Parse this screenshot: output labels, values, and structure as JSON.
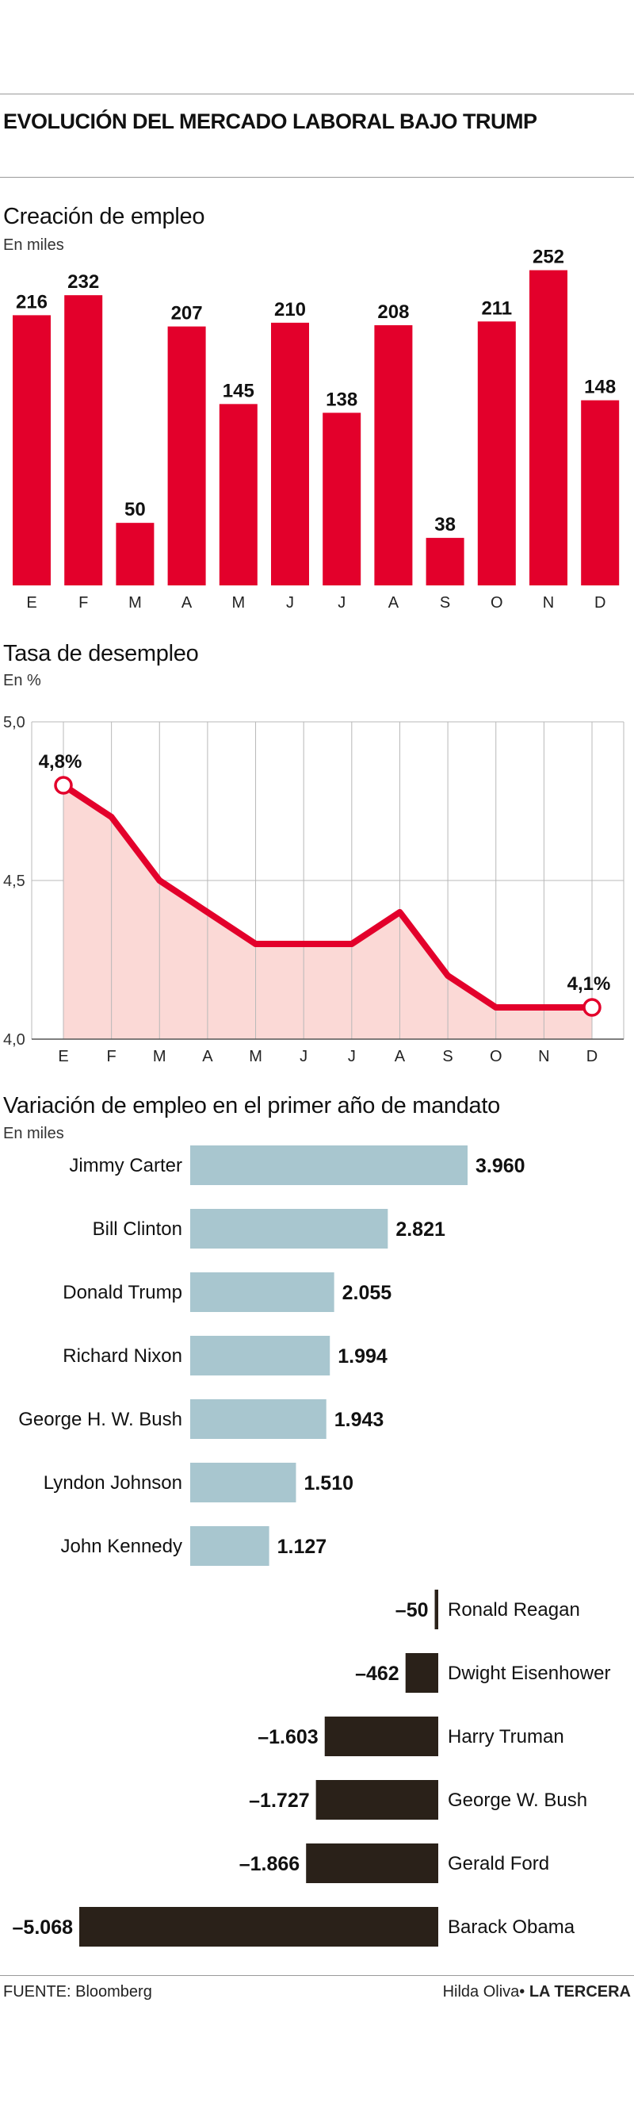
{
  "header": {
    "title": "EVOLUCIÓN DEL MERCADO LABORAL BAJO TRUMP"
  },
  "sections": {
    "jobs": {
      "title": "Creación de empleo",
      "subtitle": "En miles"
    },
    "unemployment": {
      "title": "Tasa de desempleo",
      "subtitle": "En %"
    },
    "presidents": {
      "title": "Variación de empleo en el primer año de mandato",
      "subtitle": "En miles"
    }
  },
  "colors": {
    "red": "#e3002b",
    "area": "#fbd9d6",
    "blue": "#a8c6cf",
    "dark": "#2a2119",
    "grid": "#b8b8b8"
  },
  "chart_data": [
    {
      "type": "bar",
      "title": "Creación de empleo",
      "ylabel": "En miles",
      "categories": [
        "E",
        "F",
        "M",
        "A",
        "M",
        "J",
        "J",
        "A",
        "S",
        "O",
        "N",
        "D"
      ],
      "values": [
        216,
        232,
        50,
        207,
        145,
        210,
        138,
        208,
        38,
        211,
        252,
        148
      ],
      "ylim": [
        0,
        260
      ]
    },
    {
      "type": "line",
      "title": "Tasa de desempleo",
      "ylabel": "En %",
      "categories": [
        "E",
        "F",
        "M",
        "A",
        "M",
        "J",
        "J",
        "A",
        "S",
        "O",
        "N",
        "D"
      ],
      "values": [
        4.8,
        4.7,
        4.5,
        4.4,
        4.3,
        4.3,
        4.3,
        4.4,
        4.2,
        4.1,
        4.1,
        4.1
      ],
      "yticks": [
        "5,0",
        "4,5",
        "4,0"
      ],
      "ylim": [
        4.0,
        5.0
      ],
      "start_label": "4,8%",
      "end_label": "4,1%",
      "grid": true
    },
    {
      "type": "bar",
      "orientation": "horizontal",
      "title": "Variación de empleo en el primer año de mandato",
      "ylabel": "En miles",
      "categories": [
        "Jimmy Carter",
        "Bill Clinton",
        "Donald Trump",
        "Richard Nixon",
        "George H. W. Bush",
        "Lyndon Johnson",
        "John Kennedy",
        "Ronald Reagan",
        "Dwight Eisenhower",
        "Harry Truman",
        "George W. Bush",
        "Gerald Ford",
        "Barack Obama"
      ],
      "values": [
        3960,
        2821,
        2055,
        1994,
        1943,
        1510,
        1127,
        -50,
        -462,
        -1603,
        -1727,
        -1866,
        -5068
      ],
      "value_labels": [
        "3.960",
        "2.821",
        "2.055",
        "1.994",
        "1.943",
        "1.510",
        "1.127",
        "–50",
        "–462",
        "–1.603",
        "–1.727",
        "–1.866",
        "–5.068"
      ]
    }
  ],
  "footer": {
    "source": "FUENTE: Bloomberg",
    "author": "Hilda Oliva",
    "separator": "•",
    "outlet": "LA TERCERA"
  }
}
